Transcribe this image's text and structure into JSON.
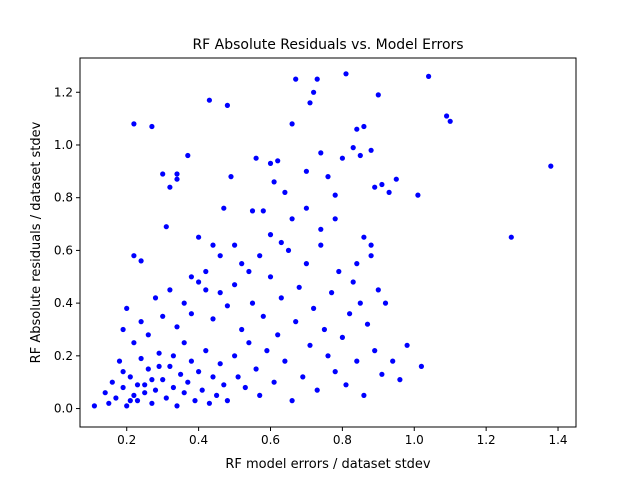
{
  "chart_data": {
    "type": "scatter",
    "title": "RF Absolute Residuals vs. Model Errors",
    "xlabel": "RF model errors / dataset stdev",
    "ylabel": "RF Absolute residuals / dataset stdev",
    "xlim": [
      0.07,
      1.45
    ],
    "ylim": [
      -0.07,
      1.33
    ],
    "xticks": [
      0.2,
      0.4,
      0.6,
      0.8,
      1.0,
      1.2,
      1.4
    ],
    "yticks": [
      0.0,
      0.2,
      0.4,
      0.6,
      0.8,
      1.0,
      1.2
    ],
    "grid": false,
    "marker_color": "#0000ff",
    "series": [
      {
        "name": "",
        "points": [
          [
            0.11,
            0.01
          ],
          [
            0.14,
            0.06
          ],
          [
            0.15,
            0.02
          ],
          [
            0.16,
            0.1
          ],
          [
            0.17,
            0.04
          ],
          [
            0.18,
            0.18
          ],
          [
            0.19,
            0.08
          ],
          [
            0.2,
            0.01
          ],
          [
            0.21,
            0.12
          ],
          [
            0.22,
            0.05
          ],
          [
            0.23,
            0.03
          ],
          [
            0.24,
            0.19
          ],
          [
            0.25,
            0.09
          ],
          [
            0.26,
            0.15
          ],
          [
            0.27,
            0.02
          ],
          [
            0.28,
            0.07
          ],
          [
            0.29,
            0.21
          ],
          [
            0.3,
            0.11
          ],
          [
            0.31,
            0.04
          ],
          [
            0.32,
            0.16
          ],
          [
            0.33,
            0.08
          ],
          [
            0.34,
            0.01
          ],
          [
            0.35,
            0.13
          ],
          [
            0.36,
            0.06
          ],
          [
            0.37,
            0.1
          ],
          [
            0.38,
            0.18
          ],
          [
            0.39,
            0.03
          ],
          [
            0.4,
            0.14
          ],
          [
            0.41,
            0.07
          ],
          [
            0.42,
            0.22
          ],
          [
            0.43,
            0.02
          ],
          [
            0.44,
            0.12
          ],
          [
            0.45,
            0.05
          ],
          [
            0.46,
            0.17
          ],
          [
            0.47,
            0.09
          ],
          [
            0.48,
            0.03
          ],
          [
            0.19,
            0.3
          ],
          [
            0.2,
            0.38
          ],
          [
            0.22,
            0.25
          ],
          [
            0.24,
            0.33
          ],
          [
            0.26,
            0.28
          ],
          [
            0.28,
            0.42
          ],
          [
            0.3,
            0.35
          ],
          [
            0.32,
            0.45
          ],
          [
            0.34,
            0.31
          ],
          [
            0.36,
            0.4
          ],
          [
            0.38,
            0.36
          ],
          [
            0.4,
            0.48
          ],
          [
            0.42,
            0.52
          ],
          [
            0.44,
            0.34
          ],
          [
            0.46,
            0.44
          ],
          [
            0.48,
            0.39
          ],
          [
            0.5,
            0.47
          ],
          [
            0.52,
            0.55
          ],
          [
            0.22,
            0.58
          ],
          [
            0.24,
            0.56
          ],
          [
            0.31,
            0.69
          ],
          [
            0.4,
            0.65
          ],
          [
            0.44,
            0.62
          ],
          [
            0.47,
            0.76
          ],
          [
            0.49,
            0.88
          ],
          [
            0.32,
            0.84
          ],
          [
            0.34,
            0.89
          ],
          [
            0.34,
            0.87
          ],
          [
            0.3,
            0.89
          ],
          [
            0.37,
            0.96
          ],
          [
            0.22,
            1.08
          ],
          [
            0.27,
            1.07
          ],
          [
            0.43,
            1.17
          ],
          [
            0.48,
            1.15
          ],
          [
            0.55,
            0.75
          ],
          [
            0.58,
            0.75
          ],
          [
            0.5,
            0.2
          ],
          [
            0.51,
            0.12
          ],
          [
            0.52,
            0.3
          ],
          [
            0.53,
            0.08
          ],
          [
            0.54,
            0.25
          ],
          [
            0.55,
            0.4
          ],
          [
            0.56,
            0.15
          ],
          [
            0.57,
            0.05
          ],
          [
            0.58,
            0.35
          ],
          [
            0.59,
            0.22
          ],
          [
            0.6,
            0.5
          ],
          [
            0.61,
            0.1
          ],
          [
            0.62,
            0.28
          ],
          [
            0.63,
            0.42
          ],
          [
            0.64,
            0.18
          ],
          [
            0.65,
            0.6
          ],
          [
            0.66,
            0.03
          ],
          [
            0.67,
            0.33
          ],
          [
            0.68,
            0.46
          ],
          [
            0.69,
            0.12
          ],
          [
            0.7,
            0.55
          ],
          [
            0.71,
            0.24
          ],
          [
            0.72,
            0.38
          ],
          [
            0.73,
            0.07
          ],
          [
            0.74,
            0.62
          ],
          [
            0.75,
            0.3
          ],
          [
            0.76,
            0.2
          ],
          [
            0.77,
            0.44
          ],
          [
            0.78,
            0.14
          ],
          [
            0.79,
            0.52
          ],
          [
            0.8,
            0.27
          ],
          [
            0.81,
            0.09
          ],
          [
            0.82,
            0.36
          ],
          [
            0.83,
            0.48
          ],
          [
            0.84,
            0.18
          ],
          [
            0.85,
            0.4
          ],
          [
            0.86,
            0.05
          ],
          [
            0.87,
            0.32
          ],
          [
            0.88,
            0.58
          ],
          [
            0.89,
            0.22
          ],
          [
            0.9,
            0.45
          ],
          [
            0.91,
            0.13
          ],
          [
            0.56,
            0.95
          ],
          [
            0.6,
            0.93
          ],
          [
            0.61,
            0.86
          ],
          [
            0.62,
            0.94
          ],
          [
            0.64,
            0.82
          ],
          [
            0.66,
            1.08
          ],
          [
            0.67,
            1.25
          ],
          [
            0.7,
            0.9
          ],
          [
            0.71,
            1.16
          ],
          [
            0.72,
            1.2
          ],
          [
            0.73,
            1.25
          ],
          [
            0.74,
            0.97
          ],
          [
            0.76,
            0.88
          ],
          [
            0.78,
            0.81
          ],
          [
            0.8,
            0.95
          ],
          [
            0.81,
            1.27
          ],
          [
            0.83,
            0.99
          ],
          [
            0.84,
            1.06
          ],
          [
            0.85,
            0.96
          ],
          [
            0.86,
            1.07
          ],
          [
            0.88,
            0.98
          ],
          [
            0.89,
            0.84
          ],
          [
            0.9,
            1.19
          ],
          [
            0.91,
            0.85
          ],
          [
            0.93,
            0.82
          ],
          [
            0.95,
            0.87
          ],
          [
            1.01,
            0.81
          ],
          [
            1.04,
            1.26
          ],
          [
            1.09,
            1.11
          ],
          [
            1.1,
            1.09
          ],
          [
            1.27,
            0.65
          ],
          [
            1.38,
            0.92
          ],
          [
            0.92,
            0.4
          ],
          [
            0.94,
            0.18
          ],
          [
            0.96,
            0.11
          ],
          [
            0.98,
            0.24
          ],
          [
            1.02,
            0.16
          ],
          [
            0.88,
            0.62
          ],
          [
            0.86,
            0.65
          ],
          [
            0.84,
            0.55
          ],
          [
            0.78,
            0.72
          ],
          [
            0.74,
            0.68
          ],
          [
            0.7,
            0.76
          ],
          [
            0.66,
            0.72
          ],
          [
            0.63,
            0.63
          ],
          [
            0.6,
            0.66
          ],
          [
            0.57,
            0.58
          ],
          [
            0.54,
            0.52
          ],
          [
            0.5,
            0.62
          ],
          [
            0.46,
            0.58
          ],
          [
            0.42,
            0.45
          ],
          [
            0.38,
            0.5
          ],
          [
            0.36,
            0.25
          ],
          [
            0.33,
            0.2
          ],
          [
            0.29,
            0.16
          ],
          [
            0.27,
            0.11
          ],
          [
            0.25,
            0.06
          ],
          [
            0.23,
            0.09
          ],
          [
            0.21,
            0.03
          ],
          [
            0.19,
            0.14
          ]
        ]
      }
    ]
  }
}
